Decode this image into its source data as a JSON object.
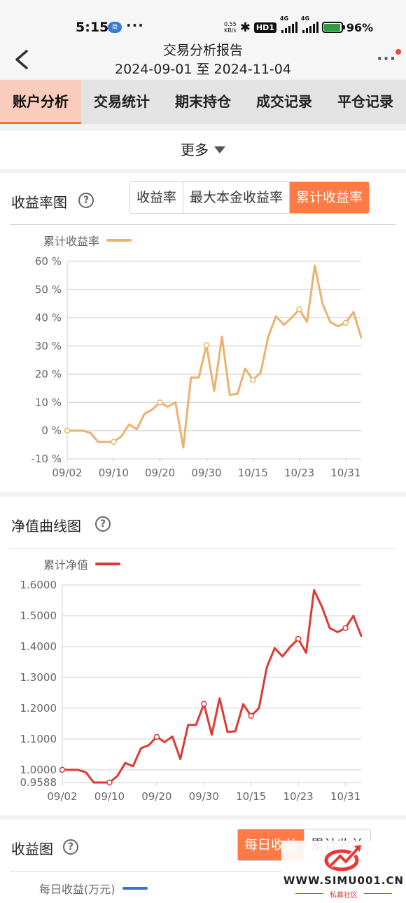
{
  "status_bar": {
    "time": "5:15",
    "app_badge": "简",
    "dots": "···",
    "net_speed_value": "0.55",
    "net_speed_unit": "KB/s",
    "hd": "HD1",
    "signal_1": "4G",
    "signal_2": "4G",
    "battery": "96%"
  },
  "nav": {
    "title": "交易分析报告",
    "date_range": "2024-09-01 至 2024-11-04",
    "more": "···"
  },
  "tabs": [
    {
      "label": "账户分析",
      "active": true
    },
    {
      "label": "交易统计",
      "active": false
    },
    {
      "label": "期末持仓",
      "active": false
    },
    {
      "label": "成交记录",
      "active": false
    },
    {
      "label": "平仓记录",
      "active": false
    }
  ],
  "more_row": {
    "label": "更多"
  },
  "return_card": {
    "title": "收益率图",
    "help": "?",
    "segments": [
      {
        "label": "收益率",
        "active": false
      },
      {
        "label": "最大本金收益率",
        "active": false
      },
      {
        "label": "累计收益率",
        "active": true
      }
    ],
    "legend": "累计收益率",
    "color": "#ebb26e"
  },
  "nav_card": {
    "title": "净值曲线图",
    "help": "?",
    "legend": "累计净值",
    "color": "#db3a34"
  },
  "profit_card": {
    "title": "收益图",
    "help": "?",
    "segments": [
      {
        "label": "每日收益",
        "active": true
      },
      {
        "label": "累计收益",
        "active": false
      }
    ],
    "legend": "每日收益(万元)",
    "color": "#3a6fd8"
  },
  "watermark": {
    "url": "WWW.SIMU001.CN",
    "sub": "私募社区"
  },
  "chart_data": [
    {
      "type": "line",
      "title": "",
      "xlabel": "",
      "ylabel": "",
      "x_ticks": [
        "09/02",
        "09/10",
        "09/20",
        "09/30",
        "10/15",
        "10/23",
        "10/31"
      ],
      "y_ticks": [
        "60 %",
        "50 %",
        "40 %",
        "30 %",
        "20 %",
        "10 %",
        "0 %",
        "-10 %"
      ],
      "ylim": [
        -10,
        60
      ],
      "legend_position": "top-left",
      "grid": true,
      "series": [
        {
          "name": "累计收益率",
          "x": [
            "09/02",
            "09/03",
            "09/04",
            "09/05",
            "09/06",
            "09/09",
            "09/10",
            "09/11",
            "09/12",
            "09/13",
            "09/18",
            "09/19",
            "09/20",
            "09/23",
            "09/24",
            "09/25",
            "09/26",
            "09/27",
            "09/30",
            "10/08",
            "10/09",
            "10/10",
            "10/11",
            "10/14",
            "10/15",
            "10/16",
            "10/17",
            "10/18",
            "10/21",
            "10/22",
            "10/23",
            "10/24",
            "10/25",
            "10/28",
            "10/29",
            "10/30",
            "10/31",
            "11/01",
            "11/04"
          ],
          "values": [
            0,
            0,
            0,
            -0.8,
            -4,
            -4,
            -4,
            -2,
            2.2,
            0.5,
            6,
            7.5,
            10,
            8.5,
            10,
            -6,
            18.8,
            18.8,
            30.3,
            14,
            33.3,
            12.7,
            13,
            22,
            18,
            20.5,
            33.5,
            40.5,
            37.5,
            40,
            43,
            38.5,
            58.5,
            45,
            38.5,
            37,
            38.2,
            42,
            33
          ]
        }
      ]
    },
    {
      "type": "line",
      "title": "",
      "xlabel": "",
      "ylabel": "",
      "x_ticks": [
        "09/02",
        "09/10",
        "09/20",
        "09/30",
        "10/15",
        "10/23",
        "10/31"
      ],
      "y_ticks": [
        "1.6000",
        "1.5000",
        "1.4000",
        "1.3000",
        "1.2000",
        "1.1000",
        "1.0000",
        "0.9588"
      ],
      "ylim": [
        0.9588,
        1.6
      ],
      "legend_position": "top-left",
      "grid": true,
      "series": [
        {
          "name": "累计净值",
          "x": [
            "09/02",
            "09/03",
            "09/04",
            "09/05",
            "09/06",
            "09/09",
            "09/10",
            "09/11",
            "09/12",
            "09/13",
            "09/18",
            "09/19",
            "09/20",
            "09/23",
            "09/24",
            "09/25",
            "09/26",
            "09/27",
            "09/30",
            "10/08",
            "10/09",
            "10/10",
            "10/11",
            "10/14",
            "10/15",
            "10/16",
            "10/17",
            "10/18",
            "10/21",
            "10/22",
            "10/23",
            "10/24",
            "10/25",
            "10/28",
            "10/29",
            "10/30",
            "10/31",
            "11/01",
            "11/04"
          ],
          "values": [
            1.0,
            1.0,
            1.0,
            0.992,
            0.9588,
            0.9588,
            0.9588,
            0.98,
            1.022,
            1.012,
            1.07,
            1.08,
            1.107,
            1.09,
            1.108,
            1.035,
            1.146,
            1.146,
            1.214,
            1.114,
            1.232,
            1.123,
            1.125,
            1.213,
            1.175,
            1.2,
            1.333,
            1.395,
            1.368,
            1.4,
            1.425,
            1.38,
            1.583,
            1.53,
            1.46,
            1.447,
            1.46,
            1.5,
            1.435
          ]
        }
      ]
    }
  ]
}
